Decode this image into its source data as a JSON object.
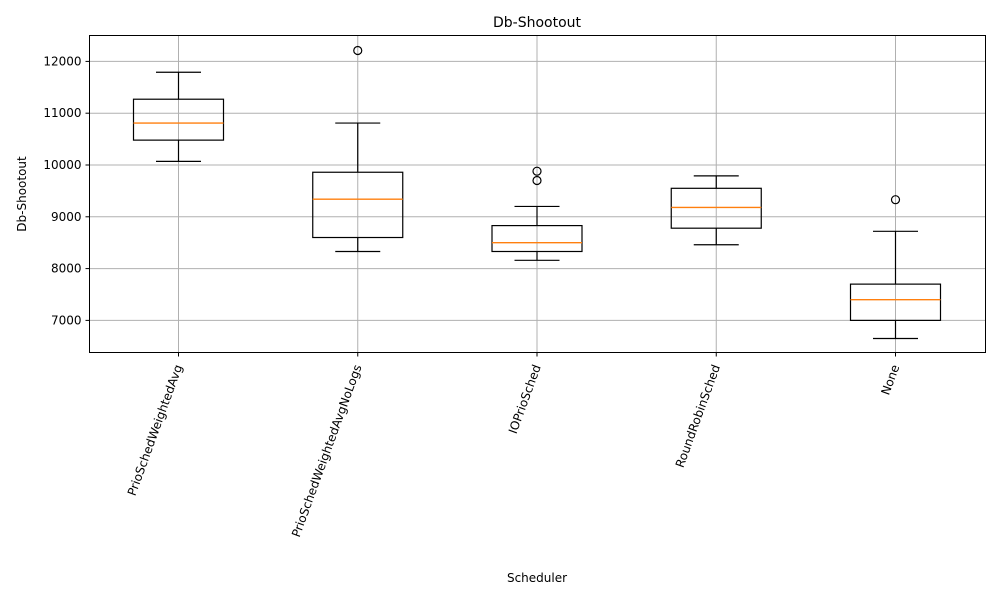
{
  "chart_data": {
    "type": "boxplot",
    "title": "Db-Shootout",
    "xlabel": "Scheduler",
    "ylabel": "Db-Shootout",
    "ylim": [
      6380,
      12500
    ],
    "yticks": [
      7000,
      8000,
      9000,
      10000,
      11000,
      12000
    ],
    "grid": true,
    "colors": {
      "box": "#000000",
      "median": "#ff7f0e",
      "grid": "#b0b0b0"
    },
    "categories": [
      "PrioSchedWeightedAvg",
      "PrioSchedWeightedAvgNoLogs",
      "IOPrioSched",
      "RoundRobinSched",
      "None"
    ],
    "boxes": [
      {
        "whislo": 10070,
        "q1": 10480,
        "med": 10810,
        "q3": 11270,
        "whishi": 11790,
        "fliers": []
      },
      {
        "whislo": 8330,
        "q1": 8600,
        "med": 9340,
        "q3": 9860,
        "whishi": 10810,
        "fliers": [
          12210
        ]
      },
      {
        "whislo": 8160,
        "q1": 8330,
        "med": 8500,
        "q3": 8830,
        "whishi": 9200,
        "fliers": [
          9700,
          9880
        ]
      },
      {
        "whislo": 8460,
        "q1": 8780,
        "med": 9180,
        "q3": 9550,
        "whishi": 9790,
        "fliers": []
      },
      {
        "whislo": 6650,
        "q1": 7000,
        "med": 7400,
        "q3": 7700,
        "whishi": 8720,
        "fliers": [
          9330
        ]
      }
    ]
  }
}
